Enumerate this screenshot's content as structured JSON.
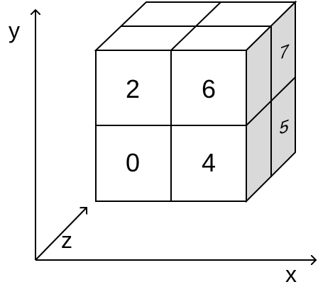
{
  "axes": {
    "x_label": "x",
    "y_label": "y",
    "z_label": "z"
  },
  "cube": {
    "front_labels": {
      "top_left": "2",
      "top_right": "6",
      "bottom_left": "0",
      "bottom_right": "4"
    },
    "side_labels": {
      "top": "7",
      "bottom": "5"
    }
  },
  "colors": {
    "side_face": "#d9d9d9",
    "line": "#000000",
    "background": "#ffffff"
  }
}
